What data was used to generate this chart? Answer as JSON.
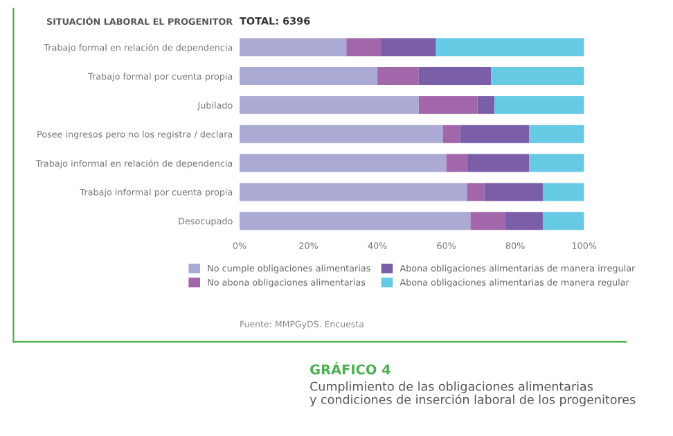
{
  "chart_data": {
    "type": "bar",
    "orientation": "horizontal",
    "stacked": true,
    "title": "GRÁFICO 4",
    "subtitle": "Cumplimiento de las obligaciones alimentarias\ny condiciones de inserción laboral de los progenitores",
    "ylabel": "SITUACIÓN LABORAL EL PROGENITOR",
    "annotations": [
      "TOTAL: 6396",
      "Fuente: MMPGyDS. Encuesta"
    ],
    "categories": [
      "Trabajo formal en relación de dependencia",
      "Trabajo formal por cuenta propia",
      "Jubilado",
      "Posee ingresos pero no los registra / declara",
      "Trabajo informal en relación de dependencia",
      "Trabajo informal por cuenta propia",
      "Desocupado"
    ],
    "series": [
      {
        "name": "No cumple obligaciones alimentarias",
        "color": "#aaaad4",
        "values": [
          31,
          40,
          52,
          59,
          60,
          66,
          67
        ]
      },
      {
        "name": "No abona obligaciones alimentarias",
        "color": "#a266ab",
        "values": [
          10,
          12,
          17,
          5,
          6,
          5,
          10
        ]
      },
      {
        "name": "Abona obligaciones alimentarias de manera irregular",
        "color": "#7b5ea8",
        "values": [
          16,
          21,
          5,
          20,
          18,
          17,
          11
        ]
      },
      {
        "name": "Abona obligaciones alimentarias de manera regular",
        "color": "#66cae5",
        "values": [
          43,
          27,
          26,
          16,
          16,
          12,
          12
        ]
      }
    ],
    "xlim": [
      0,
      100
    ],
    "xticks": [
      {
        "value": 0,
        "label": "0%"
      },
      {
        "value": 20,
        "label": "20%"
      },
      {
        "value": 40,
        "label": "40%"
      },
      {
        "value": 60,
        "label": "60%"
      },
      {
        "value": 80,
        "label": "80%"
      },
      {
        "value": 100,
        "label": "100%"
      }
    ],
    "grid": false,
    "legend": "bottom"
  }
}
